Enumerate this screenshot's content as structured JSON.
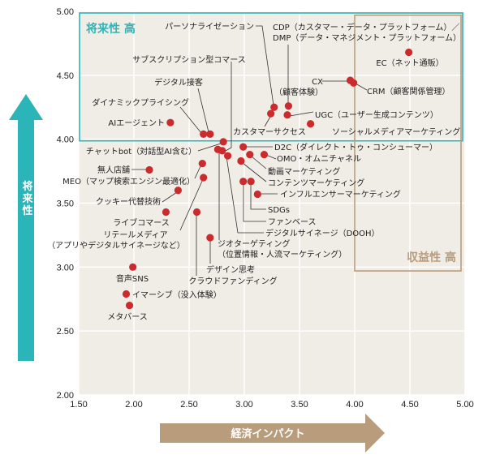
{
  "chart_data": {
    "type": "scatter",
    "title": "",
    "xlabel": "経済インパクト",
    "ylabel": "将来性",
    "xlim": [
      1.5,
      5.0
    ],
    "ylim": [
      2.0,
      5.0
    ],
    "xticks": [
      "1.50",
      "2.00",
      "2.50",
      "3.00",
      "3.50",
      "4.00",
      "4.50",
      "5.00"
    ],
    "yticks": [
      "2.00",
      "2.50",
      "3.00",
      "3.50",
      "4.00",
      "4.50",
      "5.00"
    ],
    "grid": true,
    "colors": {
      "point": "#cc2b2e",
      "future_region": "#2bb5b8",
      "revenue_region": "#b89c7c",
      "background": "#f0ece6",
      "grid": "#ffffff"
    },
    "regions": [
      {
        "label": "将来性 高",
        "x": [
          1.5,
          5.0
        ],
        "y": [
          4.0,
          5.0
        ]
      },
      {
        "label": "収益性 高",
        "x": [
          4.0,
          5.0
        ],
        "y": [
          2.97,
          4.97
        ]
      }
    ],
    "points": [
      {
        "label": "EC（ネット通販）",
        "x": 4.49,
        "y": 4.68
      },
      {
        "label": "CX\n（顧客体験）",
        "x": 3.96,
        "y": 4.46
      },
      {
        "label": "CRM（顧客関係管理）",
        "x": 3.99,
        "y": 4.44
      },
      {
        "label": "パーソナライゼーション",
        "x": 3.27,
        "y": 4.25
      },
      {
        "label": "CDP（カスタマー・データ・プラットフォーム）／\nDMP（データ・マネジメント・プラットフォーム）",
        "x": 3.4,
        "y": 4.26
      },
      {
        "label": "カスタマーサクセス",
        "x": 3.24,
        "y": 4.2
      },
      {
        "label": "UGC（ユーザー生成コンテンツ）",
        "x": 3.39,
        "y": 4.19
      },
      {
        "label": "ソーシャルメディアマーケティング",
        "x": 3.6,
        "y": 4.12
      },
      {
        "label": "AIエージェント",
        "x": 2.33,
        "y": 4.13
      },
      {
        "label": "ダイナミックプライシング",
        "x": 2.63,
        "y": 4.04
      },
      {
        "label": "デジタル接客",
        "x": 2.69,
        "y": 4.04
      },
      {
        "label": "チャットbot（対話型AI含む）",
        "x": 2.81,
        "y": 3.98
      },
      {
        "label": "サブスクリプション型コマース",
        "x": 2.8,
        "y": 3.91
      },
      {
        "label": "ジオターゲティング\n（位置情報・人流マーケティング）",
        "x": 2.76,
        "y": 3.92
      },
      {
        "label": "デジタルサイネージ（DOOH）",
        "x": 2.85,
        "y": 3.87
      },
      {
        "label": "D2C（ダイレクト・トゥ・コンシューマー）",
        "x": 2.99,
        "y": 3.94
      },
      {
        "label": "OMO・オムニチャネル",
        "x": 3.18,
        "y": 3.88
      },
      {
        "label": "動画マーケティング",
        "x": 3.05,
        "y": 3.88
      },
      {
        "label": "コンテンツマーケティング",
        "x": 2.97,
        "y": 3.83
      },
      {
        "label": "ファンベース",
        "x": 2.99,
        "y": 3.67
      },
      {
        "label": "SDGs",
        "x": 3.06,
        "y": 3.67
      },
      {
        "label": "インフルエンサーマーケティング",
        "x": 3.12,
        "y": 3.57
      },
      {
        "label": "無人店舗",
        "x": 2.14,
        "y": 3.76
      },
      {
        "label": "MEO（マップ検索エンジン最適化）",
        "x": 2.62,
        "y": 3.81
      },
      {
        "label": "リテールメディア\n（アプリやデジタルサイネージなど）",
        "x": 2.63,
        "y": 3.7
      },
      {
        "label": "クッキー代替技術",
        "x": 2.4,
        "y": 3.6
      },
      {
        "label": "ライブコマース",
        "x": 2.29,
        "y": 3.43
      },
      {
        "label": "クラウドファンディング",
        "x": 2.57,
        "y": 3.43
      },
      {
        "label": "デザイン思考",
        "x": 2.69,
        "y": 3.23
      },
      {
        "label": "音声SNS",
        "x": 1.99,
        "y": 3.0
      },
      {
        "label": "イマーシブ（没入体験）",
        "x": 1.93,
        "y": 2.79
      },
      {
        "label": "メタバース",
        "x": 1.96,
        "y": 2.7
      }
    ]
  }
}
